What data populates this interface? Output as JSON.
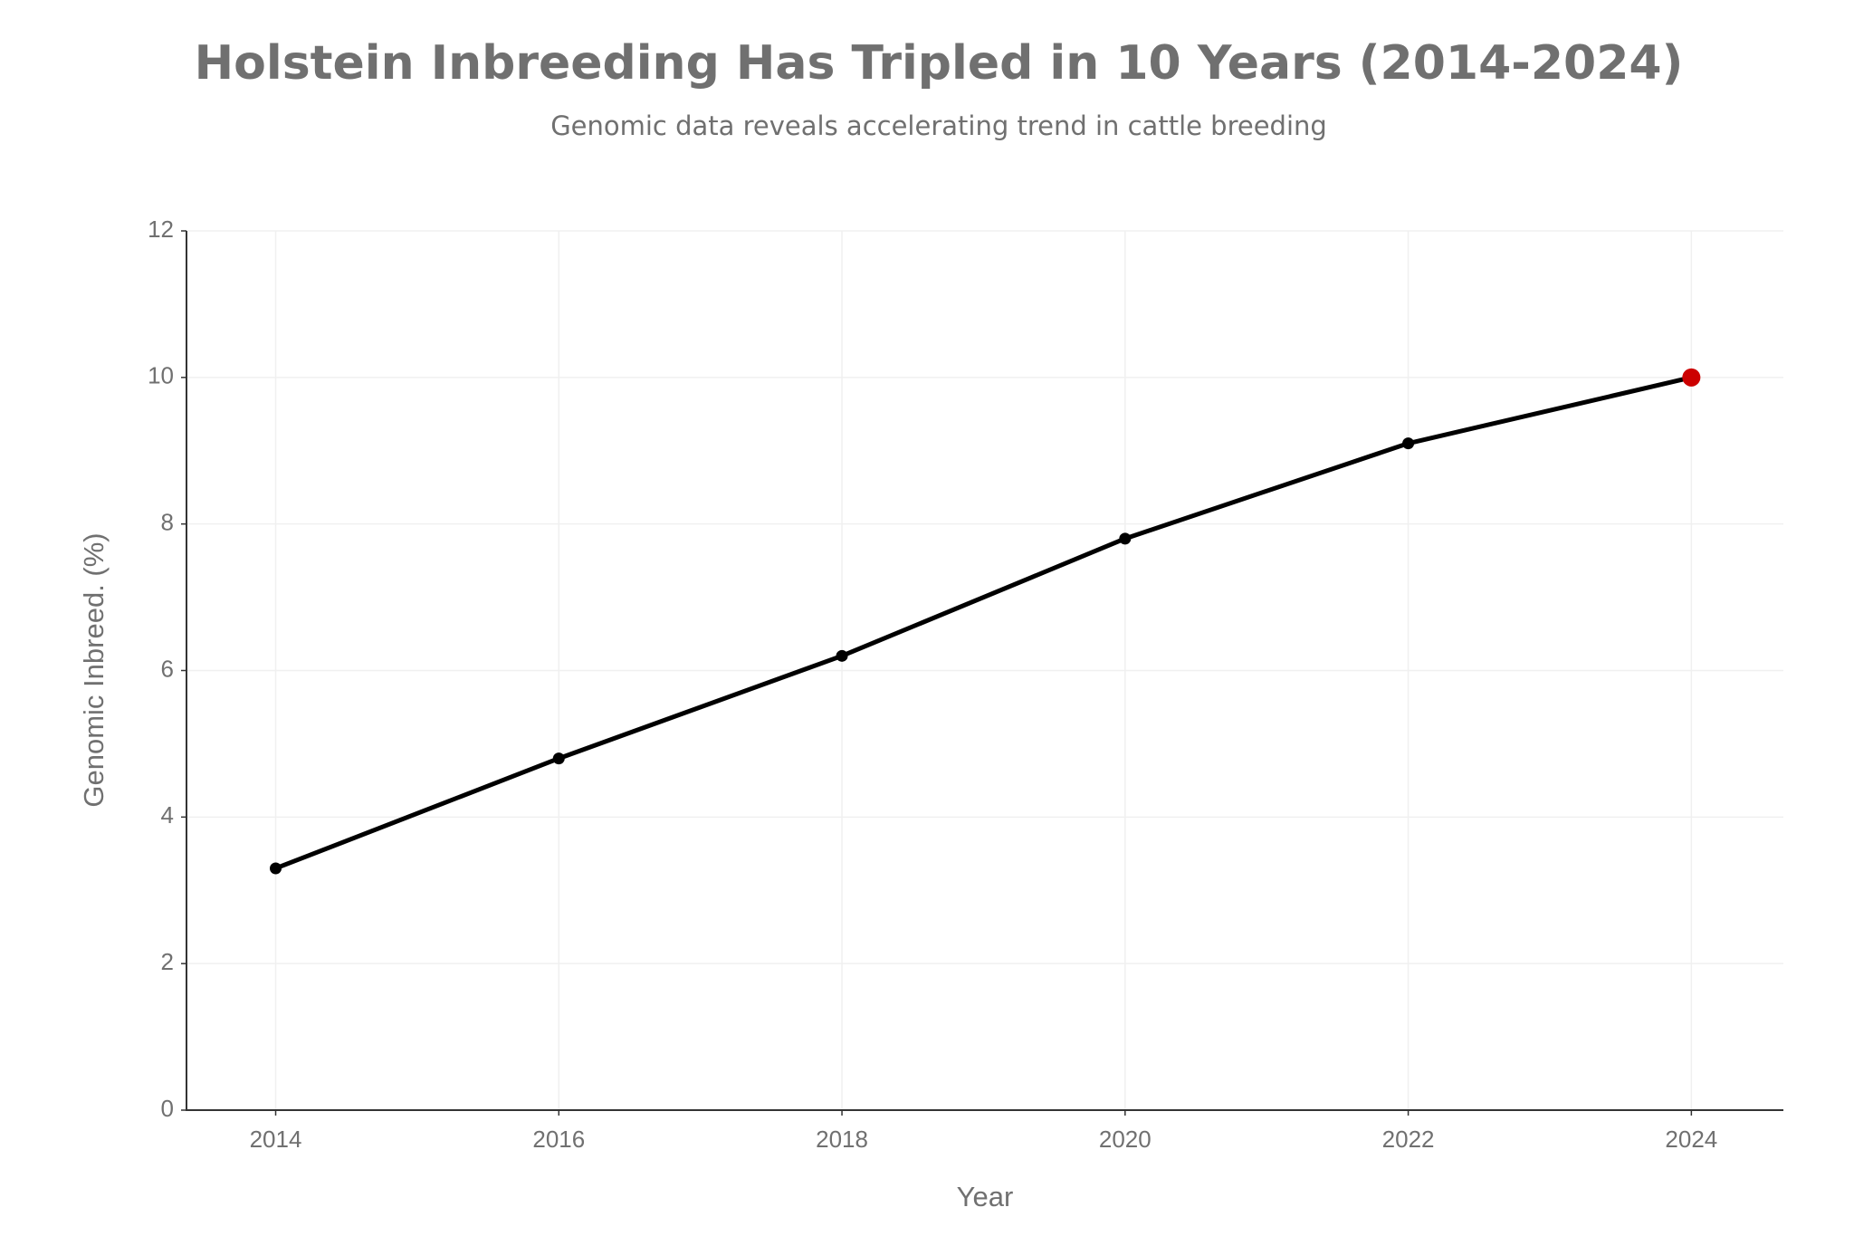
{
  "chart_data": {
    "type": "line",
    "title": "Holstein Inbreeding Has Tripled in 10 Years (2014-2024)",
    "subtitle": "Genomic data reveals accelerating trend in cattle breeding",
    "x_label": "Year",
    "y_label": "Genomic Inbreed. (%)",
    "x": [
      2014,
      2016,
      2018,
      2020,
      2022,
      2024
    ],
    "series": [
      {
        "name": "Genomic Inbreeding",
        "color": "#000000",
        "values": [
          3.3,
          4.8,
          6.2,
          7.8,
          9.1,
          10.0
        ],
        "point_colors": [
          "#000000",
          "#000000",
          "#000000",
          "#000000",
          "#000000",
          "#cc0000"
        ]
      }
    ],
    "xlim": [
      2013.37,
      2024.65
    ],
    "xticks": [
      2014,
      2016,
      2018,
      2020,
      2022,
      2024
    ],
    "ylim": [
      0,
      12
    ],
    "yticks": [
      0,
      2,
      4,
      6,
      8,
      10,
      12
    ],
    "grid": true
  }
}
